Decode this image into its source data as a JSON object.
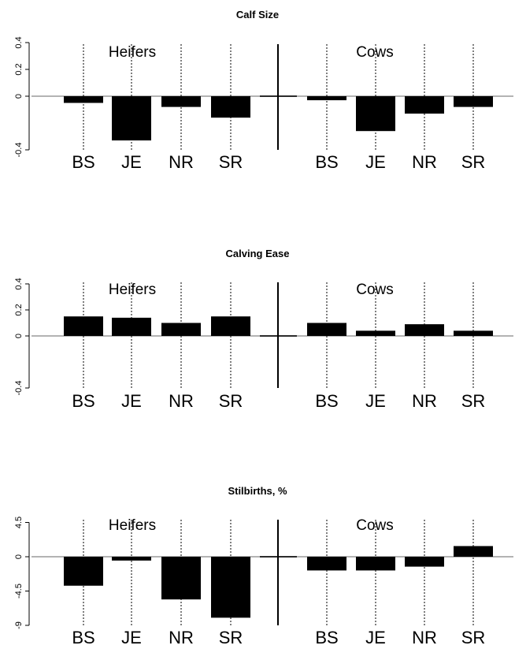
{
  "chart_data": [
    {
      "type": "bar",
      "title": "Calf Size",
      "groups": [
        "Heifers",
        "Cows"
      ],
      "categories": [
        "BS",
        "JE",
        "NR",
        "SR"
      ],
      "series": [
        {
          "name": "Heifers",
          "values": [
            -0.05,
            -0.33,
            -0.08,
            -0.16
          ]
        },
        {
          "name": "Cows",
          "values": [
            -0.03,
            -0.26,
            -0.13,
            -0.08
          ]
        }
      ],
      "yticks": [
        "-0.4",
        "0",
        "0.2",
        "0.4"
      ],
      "ylim": [
        -0.4,
        0.4
      ],
      "grid": false,
      "xlabel": "",
      "ylabel": ""
    },
    {
      "type": "bar",
      "title": "Calving Ease",
      "groups": [
        "Heifers",
        "Cows"
      ],
      "categories": [
        "BS",
        "JE",
        "NR",
        "SR"
      ],
      "series": [
        {
          "name": "Heifers",
          "values": [
            0.15,
            0.14,
            0.1,
            0.15
          ]
        },
        {
          "name": "Cows",
          "values": [
            0.1,
            0.04,
            0.09,
            0.04
          ]
        }
      ],
      "yticks": [
        "-0.4",
        "0",
        "0.2",
        "0.4"
      ],
      "ylim": [
        -0.4,
        0.4
      ],
      "grid": false,
      "xlabel": "",
      "ylabel": ""
    },
    {
      "type": "bar",
      "title": "Stilbirths, %",
      "groups": [
        "Heifers",
        "Cows"
      ],
      "categories": [
        "BS",
        "JE",
        "NR",
        "SR"
      ],
      "series": [
        {
          "name": "Heifers",
          "values": [
            -3.8,
            -0.5,
            -5.6,
            -8.0
          ]
        },
        {
          "name": "Cows",
          "values": [
            -1.8,
            -1.8,
            -1.3,
            1.4
          ]
        }
      ],
      "yticks": [
        "-9",
        "-4.5",
        "0",
        "4.5"
      ],
      "ylim": [
        -9,
        4.5
      ],
      "grid": false,
      "xlabel": "",
      "ylabel": ""
    }
  ]
}
